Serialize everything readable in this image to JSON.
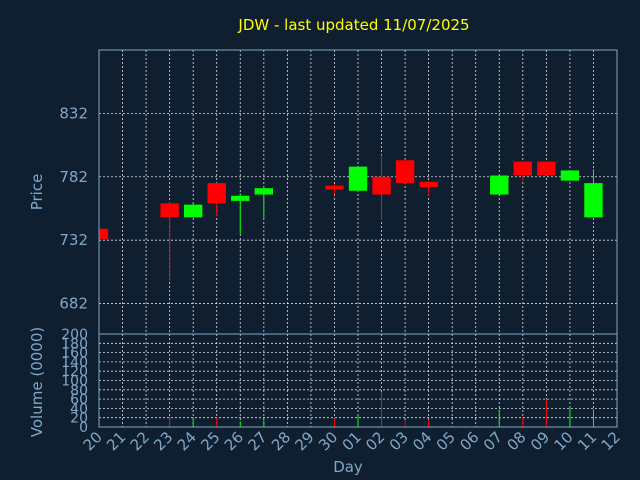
{
  "chart_data": [
    {
      "type": "candlestick",
      "title": "JDW - last updated 11/07/2025",
      "ylabel": "Price",
      "ylim": [
        658,
        882
      ],
      "yticks": [
        682,
        732,
        782,
        832
      ],
      "colors": {
        "up": "#00ff00",
        "down": "#ff0000",
        "title": "#ffff00",
        "axis": "#7fa8c9",
        "background": "#0f1f30"
      },
      "x": [
        "20",
        "21",
        "22",
        "23",
        "24",
        "25",
        "26",
        "27",
        "28",
        "29",
        "30",
        "01",
        "02",
        "03",
        "04",
        "05",
        "06",
        "07",
        "08",
        "09",
        "10",
        "11",
        "12"
      ],
      "candles": [
        {
          "x": "20",
          "open": 741,
          "high": 741,
          "low": 733,
          "close": 733
        },
        {
          "x": "23",
          "open": 761,
          "high": 762,
          "low": 700,
          "close": 750
        },
        {
          "x": "24",
          "open": 750,
          "high": 762,
          "low": 750,
          "close": 760
        },
        {
          "x": "25",
          "open": 777,
          "high": 777,
          "low": 751,
          "close": 761
        },
        {
          "x": "26",
          "open": 763,
          "high": 769,
          "low": 737,
          "close": 767
        },
        {
          "x": "27",
          "open": 768,
          "high": 774,
          "low": 749,
          "close": 773
        },
        {
          "x": "30",
          "open": 775,
          "high": 776,
          "low": 768,
          "close": 772
        },
        {
          "x": "01",
          "open": 771,
          "high": 790,
          "low": 771,
          "close": 790
        },
        {
          "x": "02",
          "open": 782,
          "high": 799,
          "low": 748,
          "close": 768
        },
        {
          "x": "03",
          "open": 795,
          "high": 795,
          "low": 777,
          "close": 777
        },
        {
          "x": "04",
          "open": 778,
          "high": 779,
          "low": 767,
          "close": 774
        },
        {
          "x": "07",
          "open": 768,
          "high": 783,
          "low": 768,
          "close": 783
        },
        {
          "x": "08",
          "open": 794,
          "high": 794,
          "low": 779,
          "close": 783
        },
        {
          "x": "09",
          "open": 794,
          "high": 794,
          "low": 783,
          "close": 783
        },
        {
          "x": "10",
          "open": 779,
          "high": 787,
          "low": 779,
          "close": 787
        },
        {
          "x": "11",
          "open": 750,
          "high": 788,
          "low": 750,
          "close": 777
        }
      ]
    },
    {
      "type": "bar",
      "ylabel": "Volume (0000)",
      "xlabel": "Day",
      "ylim": [
        0,
        200
      ],
      "yticks": [
        0,
        20,
        40,
        60,
        80,
        100,
        120,
        140,
        160,
        180,
        200
      ],
      "x": [
        "20",
        "21",
        "22",
        "23",
        "24",
        "25",
        "26",
        "27",
        "28",
        "29",
        "30",
        "01",
        "02",
        "03",
        "04",
        "05",
        "06",
        "07",
        "08",
        "09",
        "10",
        "11",
        "12"
      ],
      "volumes": [
        {
          "x": "20",
          "value": 0,
          "dir": "down"
        },
        {
          "x": "23",
          "value": 22,
          "dir": "down"
        },
        {
          "x": "24",
          "value": 20,
          "dir": "up"
        },
        {
          "x": "25",
          "value": 20,
          "dir": "down"
        },
        {
          "x": "26",
          "value": 12,
          "dir": "up"
        },
        {
          "x": "27",
          "value": 14,
          "dir": "up"
        },
        {
          "x": "30",
          "value": 18,
          "dir": "down"
        },
        {
          "x": "01",
          "value": 24,
          "dir": "up"
        },
        {
          "x": "02",
          "value": 76,
          "dir": "down"
        },
        {
          "x": "03",
          "value": 14,
          "dir": "down"
        },
        {
          "x": "04",
          "value": 16,
          "dir": "down"
        },
        {
          "x": "07",
          "value": 38,
          "dir": "up"
        },
        {
          "x": "08",
          "value": 22,
          "dir": "down"
        },
        {
          "x": "09",
          "value": 60,
          "dir": "down"
        },
        {
          "x": "10",
          "value": 42,
          "dir": "up"
        },
        {
          "x": "11",
          "value": 38,
          "dir": "up"
        }
      ]
    }
  ]
}
